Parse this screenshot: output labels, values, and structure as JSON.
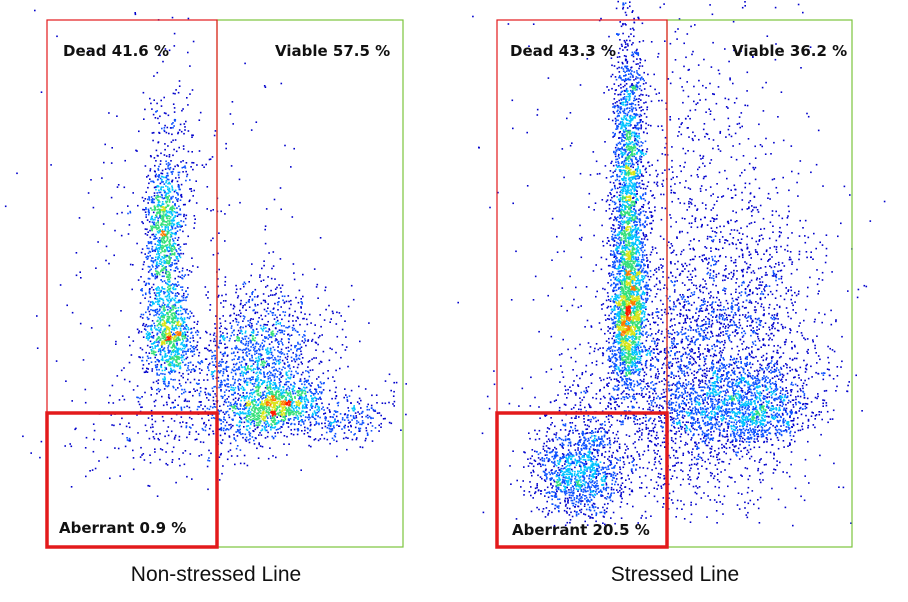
{
  "chart_data": [
    {
      "type": "scatter",
      "subtype": "flow-cytometry-density-dot-plot",
      "title": "Non-stressed Line",
      "density_colormap": [
        "#0000cc",
        "#0b50ff",
        "#00c4ff",
        "#35e07a",
        "#d9e51c",
        "#ff7a00",
        "#ff1a00"
      ],
      "gates": [
        {
          "name": "Dead",
          "label": "Dead 41.6 %",
          "percent": 41.6,
          "color": "#e3191c",
          "region": "upper-left"
        },
        {
          "name": "Viable",
          "label": "Viable 57.5 %",
          "percent": 57.5,
          "color": "#7cc43c",
          "region": "right"
        },
        {
          "name": "Aberrant",
          "label": "Aberrant 0.9 %",
          "percent": 0.9,
          "color": "#e31a1c",
          "region": "lower-left"
        }
      ]
    },
    {
      "type": "scatter",
      "subtype": "flow-cytometry-density-dot-plot",
      "title": "Stressed Line",
      "density_colormap": [
        "#0000cc",
        "#0b50ff",
        "#00c4ff",
        "#35e07a",
        "#d9e51c",
        "#ff7a00",
        "#ff1a00"
      ],
      "gates": [
        {
          "name": "Dead",
          "label": "Dead 43.3 %",
          "percent": 43.3,
          "color": "#e3191c",
          "region": "upper-left"
        },
        {
          "name": "Viable",
          "label": "Viable 36.2 %",
          "percent": 36.2,
          "color": "#7cc43c",
          "region": "right"
        },
        {
          "name": "Aberrant",
          "label": "Aberrant 20.5 %",
          "percent": 20.5,
          "color": "#e31a1c",
          "region": "lower-left"
        }
      ]
    }
  ]
}
